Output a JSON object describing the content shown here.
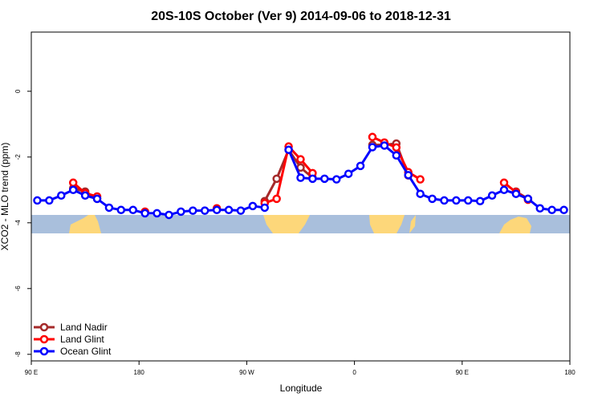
{
  "chart_data": {
    "type": "line",
    "title": "20S-10S October (Ver 9)   2014-09-06 to 2018-12-31",
    "x_label": "Longitude",
    "y_label": "XCO2 - MLO trend (ppm)",
    "xlim": [
      90,
      540
    ],
    "ylim": [
      -8.2,
      1.8
    ],
    "xticks": [
      {
        "value": 90,
        "label": "90 E"
      },
      180,
      {
        "value": 270,
        "label": "90 W"
      },
      {
        "value": 360,
        "label": "0"
      },
      {
        "value": 450,
        "label": "90 E"
      },
      {
        "value": 540,
        "label": "180"
      }
    ],
    "yticks": [
      0,
      -2,
      -4,
      -6,
      -8
    ],
    "legend": "bottom-left",
    "x": [
      95,
      105,
      115,
      125,
      135,
      145,
      155,
      165,
      175,
      185,
      195,
      205,
      215,
      225,
      235,
      245,
      255,
      265,
      275,
      285,
      295,
      305,
      315,
      325,
      335,
      345,
      355,
      365,
      375,
      385,
      395,
      405,
      415,
      425,
      435,
      445,
      455,
      465,
      475,
      485,
      495,
      505,
      515,
      525,
      535
    ],
    "series": [
      {
        "name": "Land Nadir",
        "color": "#a52a2a",
        "values": [
          null,
          null,
          null,
          -2.95,
          -3.05,
          -3.27,
          null,
          null,
          null,
          null,
          null,
          null,
          null,
          null,
          null,
          null,
          null,
          null,
          null,
          -3.34,
          -2.66,
          -1.78,
          -2.32,
          -2.63,
          null,
          null,
          null,
          null,
          -1.63,
          -1.63,
          -1.59,
          -2.56,
          null,
          null,
          null,
          null,
          null,
          null,
          null,
          null,
          -3.05,
          -3.27,
          null,
          null,
          null
        ]
      },
      {
        "name": "Land Glint",
        "color": "#ff0000",
        "values": [
          null,
          null,
          null,
          -2.78,
          -3.1,
          -3.2,
          null,
          null,
          null,
          -3.66,
          null,
          null,
          null,
          null,
          null,
          -3.56,
          null,
          null,
          null,
          -3.4,
          -3.27,
          -1.68,
          -2.07,
          -2.49,
          null,
          null,
          null,
          null,
          -1.39,
          -1.56,
          -1.71,
          -2.46,
          -2.68,
          null,
          null,
          null,
          null,
          null,
          null,
          -2.78,
          -3.07,
          -3.3,
          null,
          null,
          null
        ]
      },
      {
        "name": "Ocean Glint",
        "color": "#0000ff",
        "values": [
          -3.32,
          -3.32,
          -3.17,
          -3.0,
          -3.17,
          -3.27,
          -3.54,
          -3.61,
          -3.61,
          -3.71,
          -3.71,
          -3.76,
          -3.66,
          -3.63,
          -3.63,
          -3.61,
          -3.61,
          -3.63,
          -3.49,
          -3.54,
          null,
          -1.78,
          -2.63,
          -2.66,
          -2.66,
          -2.68,
          -2.51,
          -2.27,
          -1.7,
          -1.65,
          -1.95,
          -2.55,
          -3.12,
          -3.27,
          -3.32,
          -3.32,
          -3.32,
          -3.34,
          -3.17,
          -3.0,
          -3.12,
          -3.27,
          -3.56,
          -3.61,
          -3.61
        ]
      }
    ]
  }
}
